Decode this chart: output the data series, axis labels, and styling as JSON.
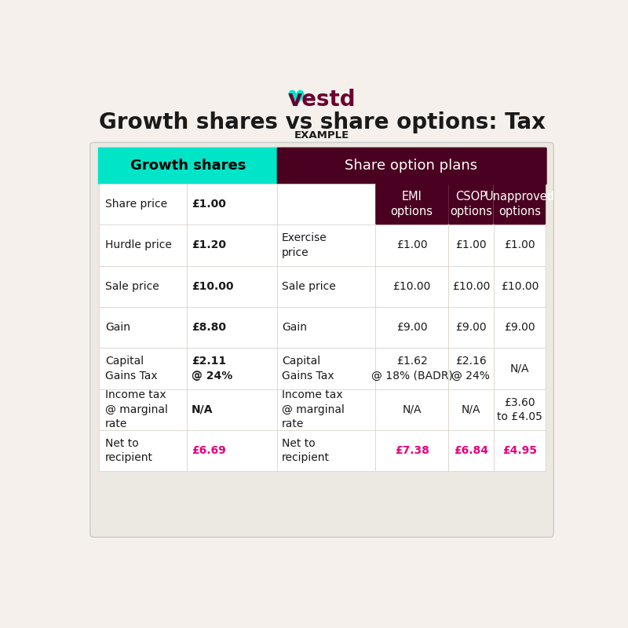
{
  "title": "Growth shares vs share options: Tax",
  "subtitle": "EXAMPLE",
  "bg_color": "#f5f0eb",
  "table_bg": "#ffffff",
  "cyan_color": "#00e5c8",
  "dark_maroon": "#4a0020",
  "pink_color": "#e6007e",
  "border_color": "#d8d0c8",
  "text_dark": "#1a1a1a",
  "vestd_color": "#6b0030",
  "header1_text": "Growth shares",
  "header2_text": "Share option plans",
  "subheader_col3": "EMI\noptions",
  "subheader_col4": "CSOP\noptions",
  "subheader_col5": "Unapproved\noptions",
  "rows": [
    {
      "col1": "Share price",
      "col2": "£1.00",
      "col2_bold": true,
      "col3_label": "",
      "col4": "",
      "col5": "",
      "col6": ""
    },
    {
      "col1": "Hurdle price",
      "col2": "£1.20",
      "col2_bold": true,
      "col3_label": "Exercise\nprice",
      "col4": "£1.00",
      "col5": "£1.00",
      "col6": "£1.00"
    },
    {
      "col1": "Sale price",
      "col2": "£10.00",
      "col2_bold": true,
      "col3_label": "Sale price",
      "col4": "£10.00",
      "col5": "£10.00",
      "col6": "£10.00"
    },
    {
      "col1": "Gain",
      "col2": "£8.80",
      "col2_bold": true,
      "col3_label": "Gain",
      "col4": "£9.00",
      "col5": "£9.00",
      "col6": "£9.00"
    },
    {
      "col1": "Capital\nGains Tax",
      "col2": "£2.11\n@ 24%",
      "col2_bold": true,
      "col3_label": "Capital\nGains Tax",
      "col4": "£1.62\n@ 18% (BADR)",
      "col5": "£2.16\n@ 24%",
      "col6": "N/A"
    },
    {
      "col1": "Income tax\n@ marginal\nrate",
      "col2": "N/A",
      "col2_bold": true,
      "col3_label": "Income tax\n@ marginal\nrate",
      "col4": "N/A",
      "col5": "N/A",
      "col6": "£3.60\nto £4.05"
    },
    {
      "col1": "Net to\nrecipient",
      "col2": "£6.69",
      "col2_bold": true,
      "col2_pink": true,
      "col3_label": "Net to\nrecipient",
      "col4": "£7.38",
      "col4_pink": true,
      "col5": "£6.84",
      "col5_pink": true,
      "col6": "£4.95",
      "col6_pink": true
    }
  ]
}
